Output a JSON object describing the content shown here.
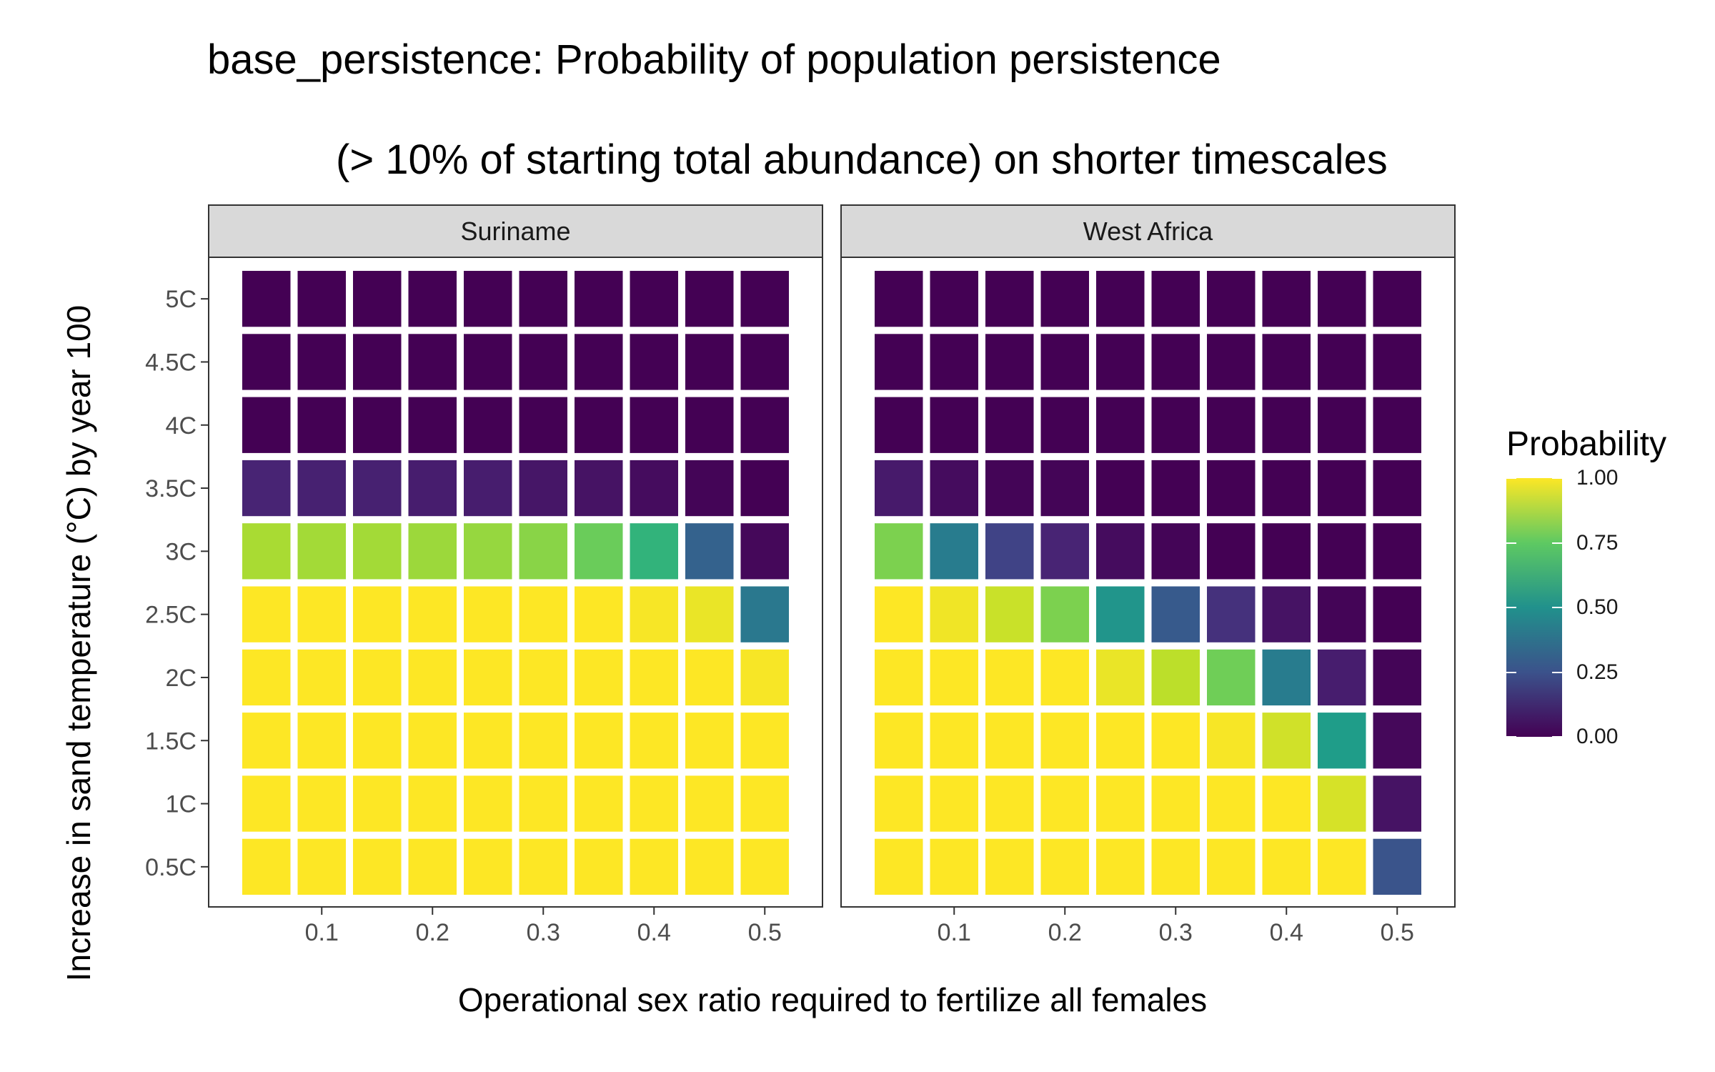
{
  "chart_data": {
    "type": "heatmap",
    "title": "base_persistence: Probability of population persistence",
    "subtitle": "(> 10% of starting total abundance) on shorter timescales",
    "xlabel": "Operational sex ratio required to fertilize all females",
    "ylabel": "Increase in sand temperature (°C) by year 100",
    "x": [
      0.05,
      0.1,
      0.15,
      0.2,
      0.25,
      0.3,
      0.35,
      0.4,
      0.45,
      0.5
    ],
    "x_ticks": [
      "0.1",
      "0.2",
      "0.3",
      "0.4",
      "0.5"
    ],
    "x_tick_values": [
      0.1,
      0.2,
      0.3,
      0.4,
      0.5
    ],
    "y": [
      "0.5C",
      "1C",
      "1.5C",
      "2C",
      "2.5C",
      "3C",
      "3.5C",
      "4C",
      "4.5C",
      "5C"
    ],
    "colorscale": "viridis",
    "facets": [
      {
        "name": "Suriname",
        "values": [
          [
            1,
            1,
            1,
            1,
            1,
            1,
            1,
            1,
            1,
            1
          ],
          [
            1,
            1,
            1,
            1,
            1,
            1,
            1,
            1,
            1,
            1
          ],
          [
            1,
            1,
            1,
            1,
            1,
            1,
            1,
            1,
            1,
            1
          ],
          [
            1,
            1,
            1,
            1,
            1,
            1,
            1,
            1,
            1,
            0.99
          ],
          [
            1,
            1,
            1,
            1,
            1,
            1,
            1,
            0.99,
            0.97,
            0.4
          ],
          [
            0.87,
            0.86,
            0.86,
            0.85,
            0.84,
            0.82,
            0.77,
            0.65,
            0.31,
            0.02
          ],
          [
            0.1,
            0.09,
            0.09,
            0.08,
            0.08,
            0.06,
            0.05,
            0.03,
            0.01,
            0.0
          ],
          [
            0,
            0,
            0,
            0,
            0,
            0,
            0,
            0,
            0,
            0
          ],
          [
            0,
            0,
            0,
            0,
            0,
            0,
            0,
            0,
            0,
            0
          ],
          [
            0,
            0,
            0,
            0,
            0,
            0,
            0,
            0,
            0,
            0
          ]
        ]
      },
      {
        "name": "West Africa",
        "values": [
          [
            1,
            1,
            1,
            1,
            1,
            1,
            1,
            1,
            1,
            0.26
          ],
          [
            1,
            1,
            1,
            1,
            1,
            1,
            1,
            1,
            0.94,
            0.05
          ],
          [
            1,
            1,
            1,
            1,
            1,
            1,
            0.99,
            0.93,
            0.55,
            0.02
          ],
          [
            1,
            1,
            1,
            1,
            0.97,
            0.9,
            0.78,
            0.42,
            0.08,
            0.01
          ],
          [
            1,
            0.98,
            0.92,
            0.8,
            0.52,
            0.28,
            0.14,
            0.05,
            0.01,
            0.0
          ],
          [
            0.8,
            0.42,
            0.2,
            0.1,
            0.03,
            0.01,
            0.0,
            0.0,
            0.0,
            0.0
          ],
          [
            0.07,
            0.03,
            0.01,
            0.01,
            0.0,
            0.0,
            0.0,
            0.0,
            0.0,
            0.0
          ],
          [
            0,
            0,
            0,
            0,
            0,
            0,
            0,
            0,
            0,
            0
          ],
          [
            0,
            0,
            0,
            0,
            0,
            0,
            0,
            0,
            0,
            0
          ],
          [
            0,
            0,
            0,
            0,
            0,
            0,
            0,
            0,
            0,
            0
          ]
        ]
      }
    ],
    "legend": {
      "title": "Probability",
      "position": "right",
      "range": [
        0,
        1
      ],
      "ticks": [
        {
          "value": 1.0,
          "label": "1.00"
        },
        {
          "value": 0.75,
          "label": "0.75"
        },
        {
          "value": 0.5,
          "label": "0.50"
        },
        {
          "value": 0.25,
          "label": "0.25"
        },
        {
          "value": 0.0,
          "label": "0.00"
        }
      ]
    },
    "grid": false
  }
}
